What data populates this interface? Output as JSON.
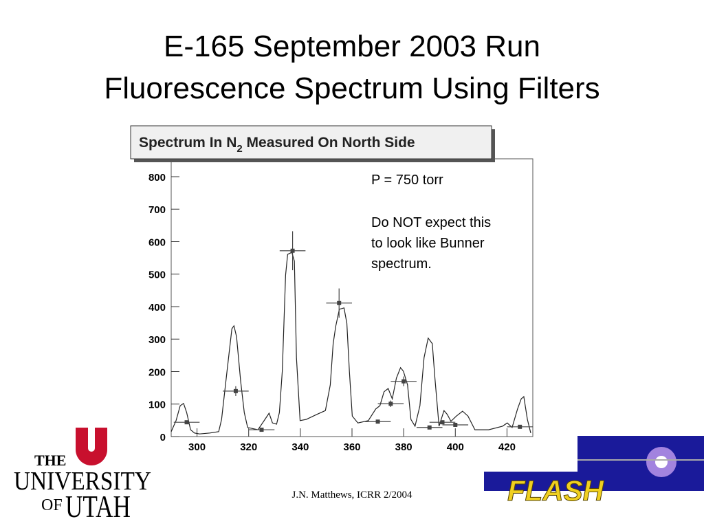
{
  "slide": {
    "title": [
      "E-165 September 2003 Run",
      "Fluorescence Spectrum Using Filters"
    ],
    "footer": "J.N. Matthews, ICRR 2/2004",
    "utah_logo": [
      "THE",
      "UNIVERSITY",
      "OF",
      "UTAH"
    ],
    "flash_logo": "FLASH"
  },
  "chart_data": {
    "type": "scatter",
    "title": [
      "Spectrum In N",
      "2",
      " Measured On North Side"
    ],
    "annotations": [
      "P = 750 torr",
      "Do NOT expect this",
      "to look like Bunner",
      "spectrum."
    ],
    "xlim": [
      290,
      430
    ],
    "xticks": [
      300,
      320,
      340,
      360,
      380,
      400,
      420
    ],
    "ylim": [
      0,
      855
    ],
    "yticks": [
      0,
      100,
      200,
      300,
      400,
      500,
      600,
      700,
      800
    ],
    "line": {
      "color": "#222222",
      "x": [
        290,
        291.9,
        293.5,
        294.8,
        296,
        297.5,
        299,
        301,
        305,
        308.4,
        309.5,
        311.6,
        313.5,
        314.3,
        315.3,
        316.9,
        318.3,
        319.6,
        323.6,
        326.3,
        327.9,
        329.2,
        330.8,
        331.9,
        333,
        334.3,
        335.1,
        336.7,
        337.7,
        338.5,
        339.9,
        342.3,
        346.3,
        349.7,
        351.6,
        352.7,
        353.7,
        355.1,
        356.9,
        358,
        359,
        360.1,
        362.3,
        366.3,
        369.2,
        370.8,
        372.4,
        374,
        375.6,
        377.2,
        378.8,
        379.9,
        381.5,
        382.8,
        384.4,
        386.3,
        387.9,
        389.5,
        391.1,
        392.1,
        393.7,
        395.6,
        396.9,
        398.3,
        400.4,
        402.8,
        404.9,
        407.6,
        412.9,
        418.3,
        420.1,
        422,
        424.1,
        425.5,
        426.5,
        427.9,
        429.2
      ],
      "y": [
        15,
        49,
        95,
        102,
        74,
        21,
        11,
        8,
        11,
        15,
        53,
        201,
        332,
        341,
        307,
        169,
        74,
        28,
        21,
        53,
        72,
        42,
        38,
        74,
        201,
        497,
        561,
        567,
        540,
        243,
        49,
        53,
        68,
        80,
        159,
        286,
        339,
        392,
        396,
        349,
        201,
        63,
        42,
        49,
        85,
        95,
        138,
        148,
        116,
        180,
        212,
        201,
        159,
        53,
        32,
        95,
        243,
        303,
        286,
        180,
        32,
        80,
        68,
        47,
        63,
        78,
        63,
        21,
        21,
        32,
        42,
        28,
        85,
        116,
        123,
        53,
        11
      ]
    },
    "points": {
      "color": "#444444",
      "x": [
        296,
        315,
        325,
        337,
        355,
        370,
        375,
        380,
        390,
        395,
        400,
        425
      ],
      "y": [
        44,
        140,
        21,
        572,
        411,
        46,
        101,
        170,
        28,
        44,
        36,
        30
      ],
      "xerr": [
        5,
        5,
        5,
        5,
        5,
        5,
        5,
        5,
        5,
        5,
        5,
        5
      ],
      "yerr": [
        5,
        15,
        5,
        60,
        45,
        5,
        10,
        15,
        5,
        5,
        5,
        5
      ]
    }
  }
}
